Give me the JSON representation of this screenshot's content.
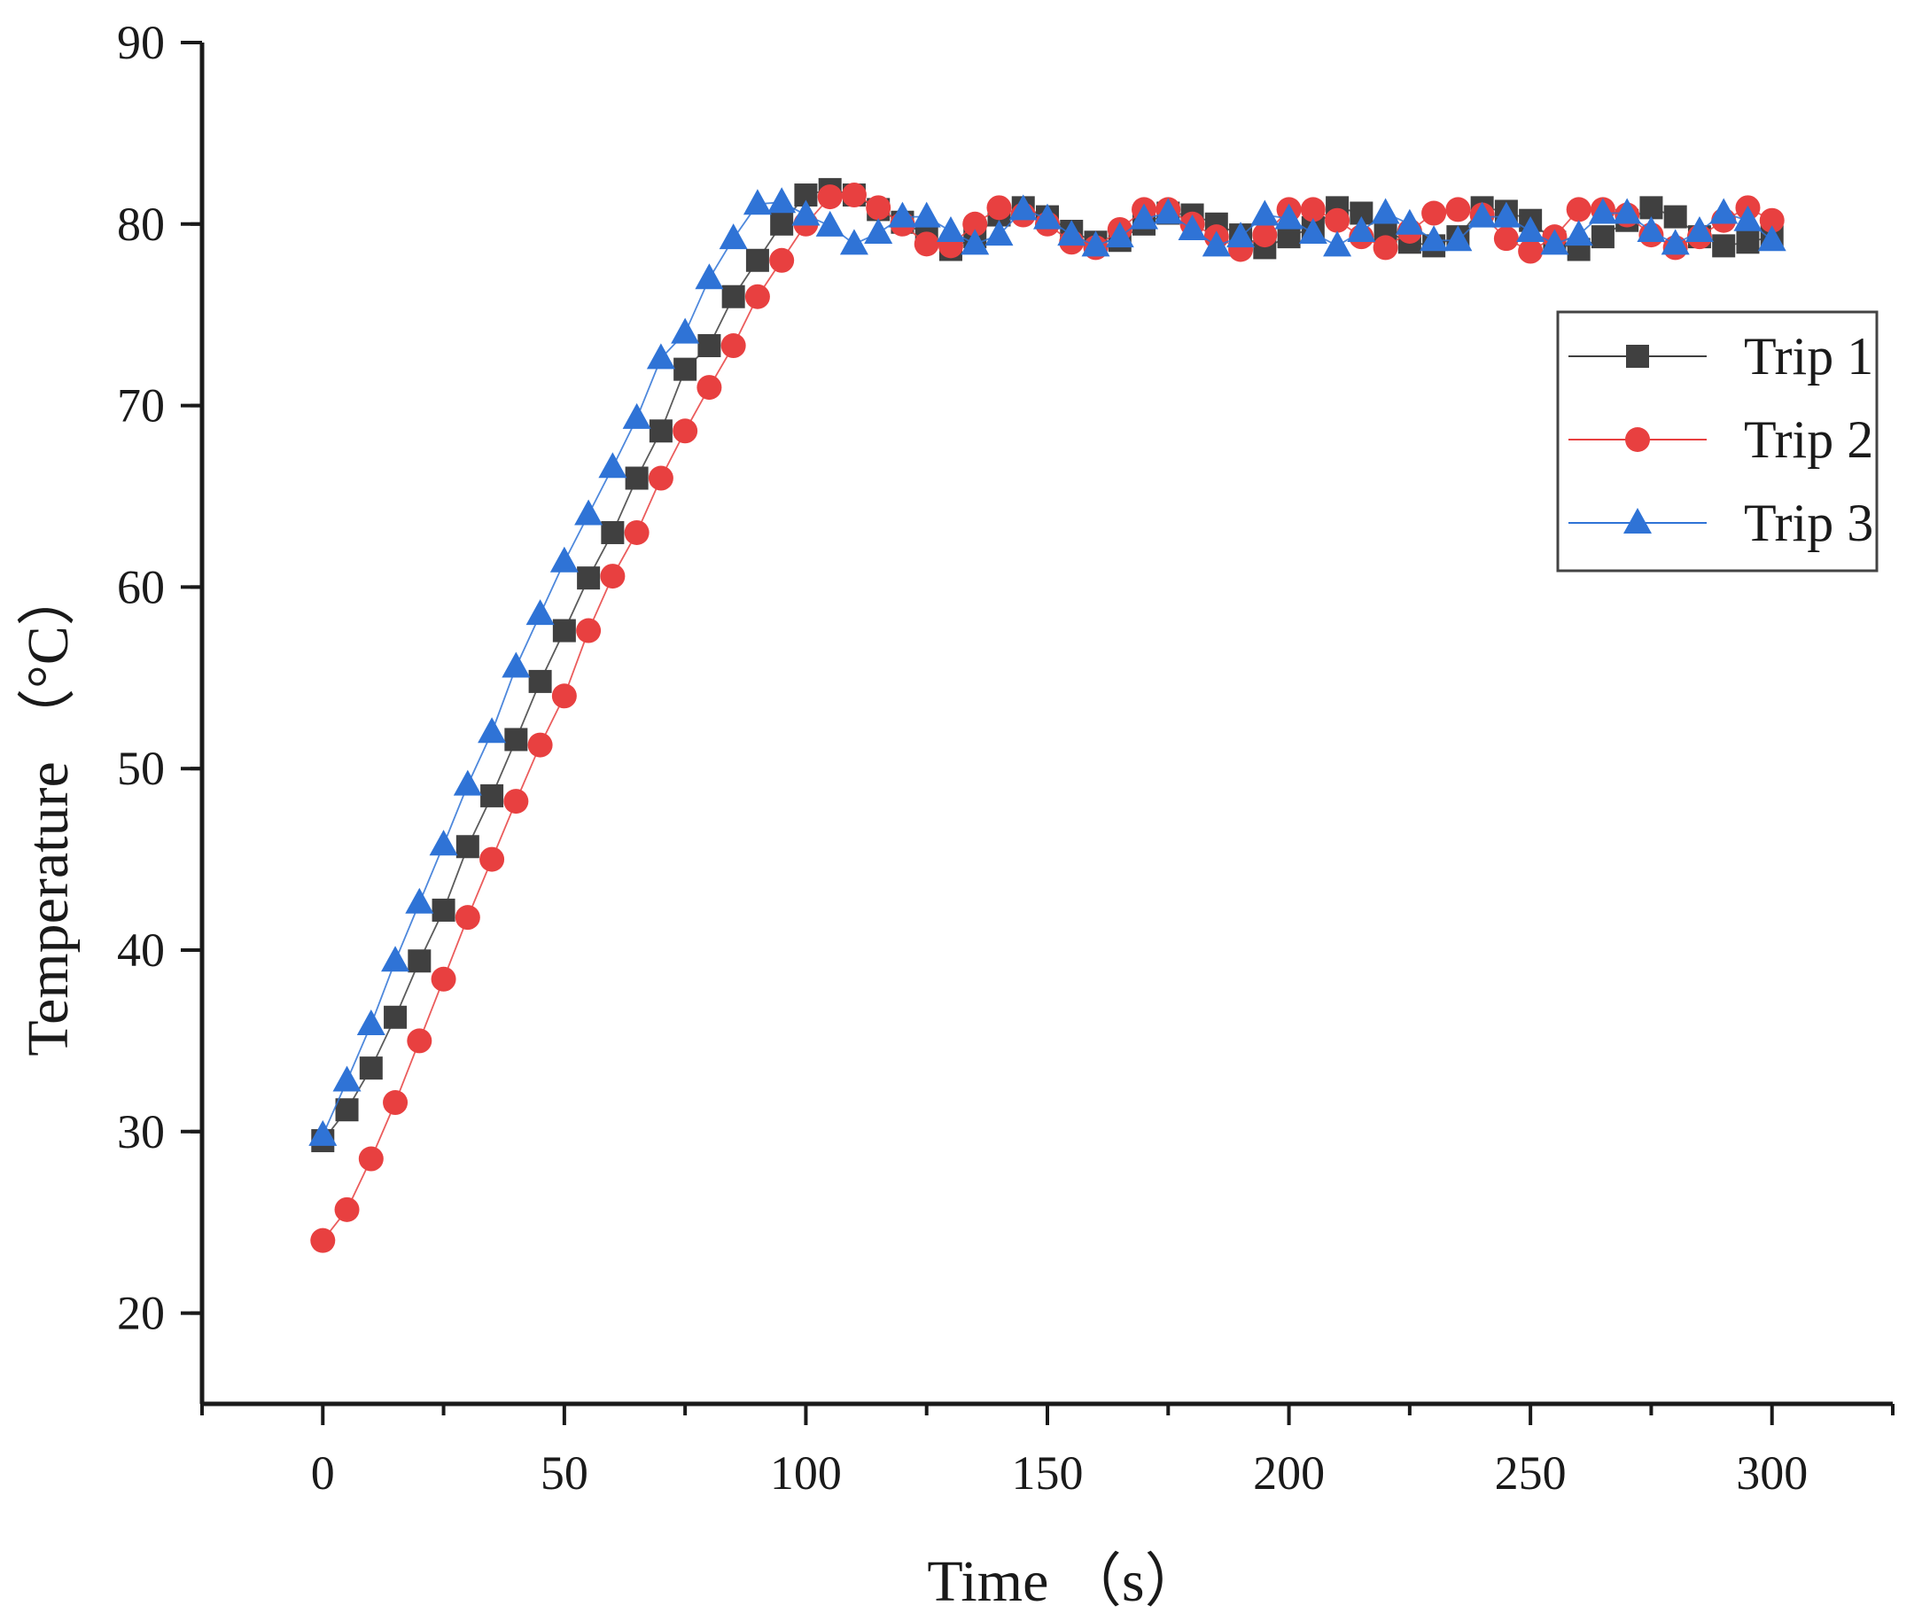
{
  "chart_data": {
    "type": "line",
    "title": "",
    "xlabel": "Time （s）",
    "ylabel": "Temperature （°C）",
    "xlim": [
      -25,
      325
    ],
    "ylim": [
      15,
      90
    ],
    "xticks": [
      0,
      50,
      100,
      150,
      200,
      250,
      300
    ],
    "yticks": [
      20,
      30,
      40,
      50,
      60,
      70,
      80,
      90
    ],
    "xtick_labels": [
      "0",
      "50",
      "100",
      "150",
      "200",
      "250",
      "300"
    ],
    "ytick_labels": [
      "20",
      "30",
      "40",
      "50",
      "60",
      "70",
      "80",
      "90"
    ],
    "grid": false,
    "legend_position": "top-right",
    "x": [
      0,
      5,
      10,
      15,
      20,
      25,
      30,
      35,
      40,
      45,
      50,
      55,
      60,
      65,
      70,
      75,
      80,
      85,
      90,
      95,
      100,
      105,
      110,
      115,
      120,
      125,
      130,
      135,
      140,
      145,
      150,
      155,
      160,
      165,
      170,
      175,
      180,
      185,
      190,
      195,
      200,
      205,
      210,
      215,
      220,
      225,
      230,
      235,
      240,
      245,
      250,
      255,
      260,
      265,
      270,
      275,
      280,
      285,
      290,
      295,
      300
    ],
    "series": [
      {
        "name": "Trip 1",
        "color": "#404040",
        "marker": "square",
        "values": [
          29.5,
          31.2,
          33.5,
          36.3,
          39.4,
          42.2,
          45.7,
          48.5,
          51.6,
          54.8,
          57.6,
          60.5,
          63.0,
          66.0,
          68.6,
          72.0,
          73.3,
          76.0,
          78.0,
          80.0,
          81.6,
          81.9,
          81.6,
          80.8,
          80.1,
          79.4,
          78.6,
          79.3,
          80.5,
          80.9,
          80.4,
          79.6,
          79.0,
          79.1,
          80.0,
          80.6,
          80.5,
          80.0,
          79.4,
          78.7,
          79.3,
          79.8,
          80.9,
          80.6,
          79.6,
          79.0,
          78.8,
          79.3,
          80.9,
          80.7,
          80.2,
          79.0,
          78.6,
          79.3,
          80.2,
          80.9,
          80.4,
          79.3,
          78.8,
          79.0,
          79.3
        ]
      },
      {
        "name": "Trip 2",
        "color": "#e84040",
        "marker": "circle",
        "values": [
          24.0,
          25.7,
          28.5,
          31.6,
          35.0,
          38.4,
          41.8,
          45.0,
          48.2,
          51.3,
          54.0,
          57.6,
          60.6,
          63.0,
          66.0,
          68.6,
          71.0,
          73.3,
          76.0,
          78.0,
          80.0,
          81.5,
          81.6,
          80.9,
          80.0,
          78.9,
          78.8,
          80.0,
          80.9,
          80.5,
          80.0,
          79.0,
          78.7,
          79.7,
          80.8,
          80.8,
          80.0,
          79.3,
          78.6,
          79.4,
          80.8,
          80.8,
          80.2,
          79.3,
          78.7,
          79.6,
          80.6,
          80.8,
          80.5,
          79.2,
          78.5,
          79.3,
          80.8,
          80.8,
          80.5,
          79.4,
          78.7,
          79.3,
          80.2,
          80.9,
          80.2
        ]
      },
      {
        "name": "Trip 3",
        "color": "#2f73d6",
        "marker": "triangle",
        "values": [
          29.8,
          32.8,
          35.9,
          39.4,
          42.6,
          45.8,
          49.1,
          52.0,
          55.6,
          58.5,
          61.4,
          64.0,
          66.6,
          69.3,
          72.6,
          74.0,
          77.0,
          79.2,
          81.1,
          81.2,
          80.5,
          79.9,
          78.9,
          79.5,
          80.4,
          80.4,
          79.6,
          78.9,
          79.4,
          80.8,
          80.3,
          79.4,
          78.8,
          79.3,
          80.3,
          80.6,
          79.7,
          78.8,
          79.3,
          80.5,
          80.3,
          79.5,
          78.8,
          79.6,
          80.6,
          80.0,
          79.1,
          79.1,
          80.4,
          80.4,
          79.6,
          78.9,
          79.4,
          80.6,
          80.6,
          79.6,
          78.9,
          79.6,
          80.6,
          80.2,
          79.1
        ]
      }
    ]
  }
}
